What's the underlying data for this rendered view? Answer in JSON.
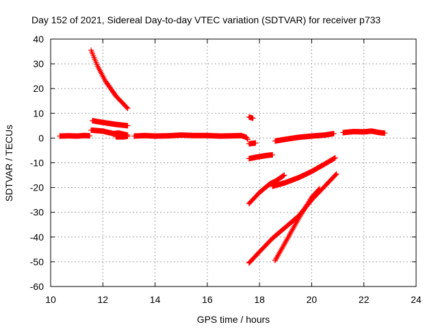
{
  "chart_data": {
    "type": "scatter",
    "title": "Day 152 of 2021, Sidereal Day-to-day VTEC variation (SDTVAR) for receiver p733",
    "xlabel": "GPS time / hours",
    "ylabel": "SDTVAR / TECUs",
    "xlim": [
      10,
      24
    ],
    "ylim": [
      -60,
      40
    ],
    "xticks": [
      10,
      12,
      14,
      16,
      18,
      20,
      22,
      24
    ],
    "yticks": [
      -60,
      -50,
      -40,
      -30,
      -20,
      -10,
      0,
      10,
      20,
      30,
      40
    ],
    "grid": true,
    "legend": "none",
    "marker": "plus",
    "color": "#ff0000",
    "series": [
      {
        "points": [
          [
            11.55,
            35.5
          ],
          [
            11.8,
            29
          ],
          [
            12.1,
            23
          ],
          [
            12.5,
            17
          ],
          [
            12.95,
            12
          ]
        ]
      },
      {
        "points": [
          [
            11.6,
            7
          ],
          [
            12.0,
            6.3
          ],
          [
            12.5,
            5.5
          ],
          [
            12.95,
            5
          ]
        ]
      },
      {
        "points": [
          [
            11.55,
            3.2
          ],
          [
            12.0,
            2.8
          ],
          [
            12.4,
            1.8
          ],
          [
            12.6,
            2
          ],
          [
            12.95,
            1.2
          ]
        ]
      },
      {
        "points": [
          [
            10.35,
            0.8
          ],
          [
            10.7,
            0.9
          ],
          [
            11.0,
            0.8
          ],
          [
            11.3,
            1.0
          ],
          [
            11.5,
            0.9
          ]
        ]
      },
      {
        "points": [
          [
            12.5,
            0.5
          ],
          [
            12.8,
            0.5
          ],
          [
            12.95,
            0.7
          ]
        ]
      },
      {
        "points": [
          [
            13.2,
            0.8
          ],
          [
            13.6,
            1.0
          ],
          [
            14.0,
            0.8
          ],
          [
            14.5,
            0.9
          ],
          [
            15.0,
            1.2
          ],
          [
            15.5,
            1.0
          ],
          [
            16.0,
            1.0
          ],
          [
            16.5,
            0.8
          ],
          [
            17.0,
            0.9
          ],
          [
            17.3,
            1.0
          ],
          [
            17.5,
            0.3
          ],
          [
            17.55,
            -0.6
          ]
        ]
      },
      {
        "points": [
          [
            17.6,
            8.5
          ],
          [
            17.75,
            8.0
          ]
        ]
      },
      {
        "points": [
          [
            17.6,
            -2.3
          ],
          [
            17.85,
            -2.0
          ]
        ]
      },
      {
        "points": [
          [
            17.6,
            -8.3
          ],
          [
            18.0,
            -7.5
          ],
          [
            18.3,
            -7.0
          ],
          [
            18.5,
            -6.8
          ]
        ]
      },
      {
        "points": [
          [
            18.6,
            -1.2
          ],
          [
            19.0,
            -0.5
          ],
          [
            19.5,
            0.3
          ],
          [
            20.0,
            0.8
          ],
          [
            20.5,
            1.2
          ],
          [
            20.85,
            1.8
          ]
        ]
      },
      {
        "points": [
          [
            21.2,
            2.2
          ],
          [
            21.6,
            2.6
          ],
          [
            22.0,
            2.5
          ],
          [
            22.3,
            2.8
          ],
          [
            22.6,
            2.2
          ],
          [
            22.8,
            2.0
          ]
        ]
      },
      {
        "points": [
          [
            17.6,
            -26.5
          ],
          [
            18.0,
            -22
          ],
          [
            18.4,
            -18.5
          ],
          [
            18.6,
            -17.5
          ],
          [
            18.95,
            -15
          ]
        ]
      },
      {
        "points": [
          [
            18.5,
            -19.5
          ],
          [
            19.0,
            -18
          ],
          [
            19.5,
            -16
          ],
          [
            20.0,
            -13.5
          ],
          [
            20.5,
            -10.5
          ],
          [
            20.9,
            -8
          ]
        ]
      },
      {
        "points": [
          [
            17.6,
            -50.5
          ],
          [
            18.0,
            -46
          ],
          [
            18.5,
            -40.5
          ],
          [
            19.0,
            -36
          ],
          [
            19.5,
            -31.5
          ],
          [
            20.0,
            -25
          ],
          [
            20.5,
            -19.5
          ],
          [
            20.95,
            -14.5
          ]
        ]
      },
      {
        "points": [
          [
            18.6,
            -49.5
          ],
          [
            19.0,
            -42
          ],
          [
            19.5,
            -32.5
          ],
          [
            20.0,
            -24
          ],
          [
            20.3,
            -20.5
          ]
        ]
      }
    ]
  }
}
